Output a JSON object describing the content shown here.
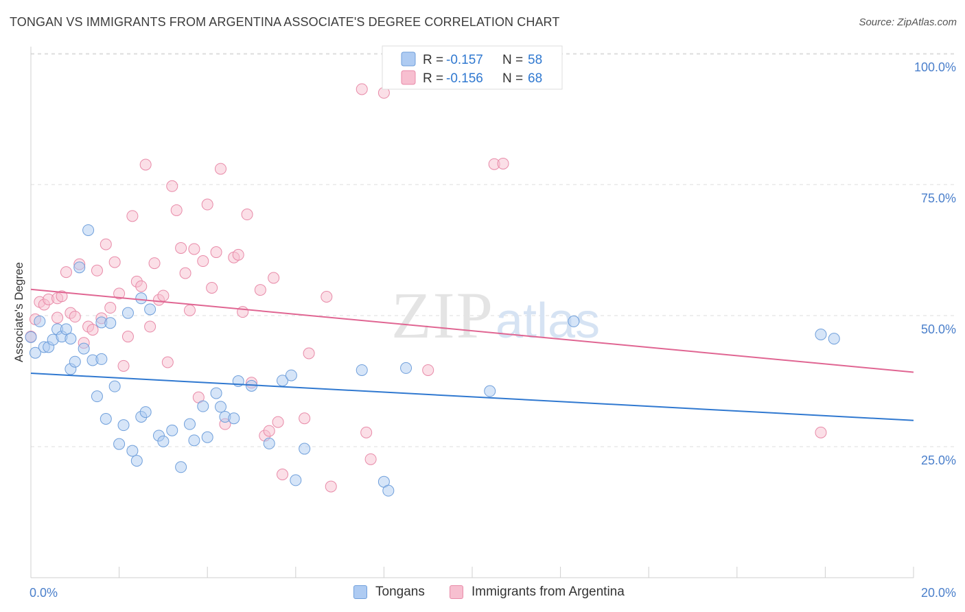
{
  "title": "TONGAN VS IMMIGRANTS FROM ARGENTINA ASSOCIATE'S DEGREE CORRELATION CHART",
  "source": "Source: ZipAtlas.com",
  "watermark": {
    "zip": "ZIP",
    "atlas": "atlas"
  },
  "colors": {
    "blue_fill": "#aecbf2",
    "blue_stroke": "#6f9fdb",
    "blue_line": "#2f78d0",
    "pink_fill": "#f7bfd0",
    "pink_stroke": "#e88aa8",
    "pink_line": "#e06592",
    "axis_text": "#4a7fcb",
    "grid": "#dddddd"
  },
  "legend_top": {
    "rows": [
      {
        "r_label": "R =",
        "r_value": "-0.157",
        "n_label": "N =",
        "n_value": "58"
      },
      {
        "r_label": "R =",
        "r_value": "-0.156",
        "n_label": "N =",
        "n_value": "68"
      }
    ]
  },
  "legend_bottom": {
    "items": [
      "Tongans",
      "Immigrants from Argentina"
    ]
  },
  "chart_data": {
    "type": "scatter",
    "title": "TONGAN VS IMMIGRANTS FROM ARGENTINA ASSOCIATE'S DEGREE CORRELATION CHART",
    "xlabel": "",
    "ylabel": "Associate's Degree",
    "xlim": [
      0,
      20
    ],
    "ylim": [
      0,
      105
    ],
    "x_tick_labels": [
      "0.0%",
      "20.0%"
    ],
    "y_ticks": [
      25,
      50,
      75,
      100
    ],
    "y_tick_labels": [
      "25.0%",
      "50.0%",
      "75.0%",
      "100.0%"
    ],
    "grid": true,
    "legend_position": "top-center",
    "series": [
      {
        "name": "Tongans",
        "color": "blue",
        "trend": {
          "x": [
            0,
            20
          ],
          "y": [
            39.0,
            30.0
          ]
        },
        "points": [
          [
            0.0,
            45.9
          ],
          [
            0.1,
            42.9
          ],
          [
            0.2,
            48.9
          ],
          [
            0.3,
            44.0
          ],
          [
            0.4,
            44.0
          ],
          [
            0.5,
            45.4
          ],
          [
            0.6,
            47.4
          ],
          [
            0.7,
            46.0
          ],
          [
            0.8,
            47.4
          ],
          [
            0.9,
            45.6
          ],
          [
            0.9,
            39.8
          ],
          [
            1.0,
            41.2
          ],
          [
            1.1,
            59.2
          ],
          [
            1.2,
            43.7
          ],
          [
            1.3,
            66.3
          ],
          [
            1.4,
            41.5
          ],
          [
            1.5,
            34.6
          ],
          [
            1.6,
            41.7
          ],
          [
            1.6,
            48.7
          ],
          [
            1.7,
            30.3
          ],
          [
            1.8,
            48.6
          ],
          [
            1.9,
            36.5
          ],
          [
            2.0,
            25.5
          ],
          [
            2.1,
            29.1
          ],
          [
            2.2,
            50.5
          ],
          [
            2.3,
            24.2
          ],
          [
            2.4,
            22.3
          ],
          [
            2.5,
            30.7
          ],
          [
            2.6,
            31.6
          ],
          [
            2.5,
            53.3
          ],
          [
            2.7,
            51.2
          ],
          [
            2.9,
            27.1
          ],
          [
            3.0,
            26.0
          ],
          [
            3.2,
            28.1
          ],
          [
            3.4,
            21.1
          ],
          [
            3.6,
            29.3
          ],
          [
            3.7,
            26.2
          ],
          [
            3.9,
            32.7
          ],
          [
            4.0,
            26.8
          ],
          [
            4.2,
            35.2
          ],
          [
            4.3,
            32.6
          ],
          [
            4.4,
            30.7
          ],
          [
            4.6,
            30.4
          ],
          [
            4.7,
            37.5
          ],
          [
            5.0,
            36.6
          ],
          [
            5.4,
            25.6
          ],
          [
            5.7,
            37.6
          ],
          [
            5.9,
            38.6
          ],
          [
            6.0,
            18.6
          ],
          [
            6.2,
            24.6
          ],
          [
            7.5,
            39.6
          ],
          [
            8.0,
            18.3
          ],
          [
            8.1,
            16.6
          ],
          [
            8.5,
            40.0
          ],
          [
            10.4,
            35.6
          ],
          [
            12.3,
            48.9
          ],
          [
            17.9,
            46.4
          ],
          [
            18.2,
            45.6
          ]
        ]
      },
      {
        "name": "Immigrants from Argentina",
        "color": "pink",
        "trend": {
          "x": [
            0,
            20
          ],
          "y": [
            55.0,
            39.2
          ]
        },
        "points": [
          [
            0.0,
            46.0
          ],
          [
            0.1,
            49.3
          ],
          [
            0.2,
            52.6
          ],
          [
            0.3,
            52.1
          ],
          [
            0.4,
            53.1
          ],
          [
            0.6,
            49.6
          ],
          [
            0.6,
            53.3
          ],
          [
            0.7,
            53.7
          ],
          [
            0.8,
            58.3
          ],
          [
            0.9,
            50.5
          ],
          [
            1.0,
            49.8
          ],
          [
            1.1,
            59.8
          ],
          [
            1.2,
            44.8
          ],
          [
            1.3,
            47.9
          ],
          [
            1.4,
            47.3
          ],
          [
            1.5,
            58.6
          ],
          [
            1.6,
            49.5
          ],
          [
            1.7,
            63.6
          ],
          [
            1.8,
            51.5
          ],
          [
            1.9,
            60.2
          ],
          [
            2.0,
            54.2
          ],
          [
            2.1,
            40.4
          ],
          [
            2.2,
            46.0
          ],
          [
            2.3,
            69.0
          ],
          [
            2.4,
            56.5
          ],
          [
            2.5,
            55.6
          ],
          [
            2.6,
            78.8
          ],
          [
            2.7,
            47.9
          ],
          [
            2.8,
            60.0
          ],
          [
            2.9,
            53.0
          ],
          [
            3.0,
            53.8
          ],
          [
            3.1,
            41.1
          ],
          [
            3.2,
            74.7
          ],
          [
            3.3,
            70.1
          ],
          [
            3.4,
            62.9
          ],
          [
            3.5,
            58.1
          ],
          [
            3.6,
            51.0
          ],
          [
            3.7,
            62.7
          ],
          [
            3.8,
            34.4
          ],
          [
            3.9,
            60.4
          ],
          [
            4.0,
            71.2
          ],
          [
            4.1,
            55.3
          ],
          [
            4.2,
            62.1
          ],
          [
            4.3,
            78.0
          ],
          [
            4.4,
            29.3
          ],
          [
            4.6,
            61.1
          ],
          [
            4.7,
            61.6
          ],
          [
            4.8,
            50.7
          ],
          [
            4.9,
            69.3
          ],
          [
            5.0,
            37.2
          ],
          [
            5.2,
            54.9
          ],
          [
            5.3,
            27.1
          ],
          [
            5.4,
            28.0
          ],
          [
            5.5,
            57.2
          ],
          [
            5.6,
            29.7
          ],
          [
            5.7,
            19.7
          ],
          [
            6.2,
            30.4
          ],
          [
            6.3,
            42.8
          ],
          [
            6.7,
            53.6
          ],
          [
            6.8,
            17.4
          ],
          [
            7.5,
            93.2
          ],
          [
            7.6,
            27.7
          ],
          [
            7.7,
            22.6
          ],
          [
            8.0,
            92.5
          ],
          [
            9.0,
            39.6
          ],
          [
            10.5,
            78.9
          ],
          [
            10.7,
            79.0
          ],
          [
            17.9,
            27.7
          ]
        ]
      }
    ]
  }
}
